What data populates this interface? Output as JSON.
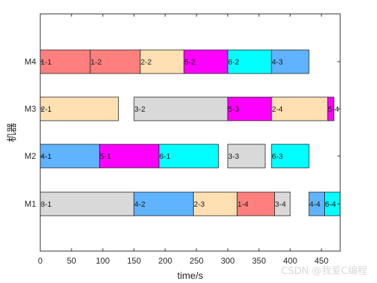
{
  "chart_data": {
    "type": "gantt",
    "xlabel": "time/s",
    "ylabel": "机器",
    "xlim": [
      0,
      480
    ],
    "xticks": [
      0,
      50,
      100,
      150,
      200,
      250,
      300,
      350,
      400,
      450
    ],
    "machines": [
      "M1",
      "M2",
      "M3",
      "M4"
    ],
    "job_colors": {
      "1": "#ff7f7f",
      "2": "#ffe0b3",
      "3": "#d9d9d9",
      "4": "#5fb3ff",
      "5": "#ff00ff",
      "6": "#00ffff"
    },
    "tasks": [
      {
        "machine": "M4",
        "label": "1-1",
        "job": "1",
        "start": 0,
        "end": 80
      },
      {
        "machine": "M4",
        "label": "1-2",
        "job": "1",
        "start": 80,
        "end": 160
      },
      {
        "machine": "M4",
        "label": "2-2",
        "job": "2",
        "start": 160,
        "end": 230
      },
      {
        "machine": "M4",
        "label": "5-2",
        "job": "5",
        "start": 230,
        "end": 300
      },
      {
        "machine": "M4",
        "label": "6-2",
        "job": "6",
        "start": 300,
        "end": 370
      },
      {
        "machine": "M4",
        "label": "4-3",
        "job": "4",
        "start": 370,
        "end": 430
      },
      {
        "machine": "M3",
        "label": "2-1",
        "job": "2",
        "start": 0,
        "end": 125
      },
      {
        "machine": "M3",
        "label": "3-2",
        "job": "3",
        "start": 150,
        "end": 300
      },
      {
        "machine": "M3",
        "label": "5-3",
        "job": "5",
        "start": 300,
        "end": 370
      },
      {
        "machine": "M3",
        "label": "2-4",
        "job": "2",
        "start": 370,
        "end": 460
      },
      {
        "machine": "M3",
        "label": "5-4",
        "job": "5",
        "start": 460,
        "end": 470
      },
      {
        "machine": "M2",
        "label": "4-1",
        "job": "4",
        "start": 0,
        "end": 95
      },
      {
        "machine": "M2",
        "label": "5-1",
        "job": "5",
        "start": 95,
        "end": 190
      },
      {
        "machine": "M2",
        "label": "6-1",
        "job": "6",
        "start": 190,
        "end": 285
      },
      {
        "machine": "M2",
        "label": "3-3",
        "job": "3",
        "start": 300,
        "end": 360
      },
      {
        "machine": "M2",
        "label": "6-3",
        "job": "6",
        "start": 370,
        "end": 430
      },
      {
        "machine": "M1",
        "label": "3-1",
        "job": "3",
        "start": 0,
        "end": 150
      },
      {
        "machine": "M1",
        "label": "4-2",
        "job": "4",
        "start": 150,
        "end": 245
      },
      {
        "machine": "M1",
        "label": "2-3",
        "job": "2",
        "start": 245,
        "end": 315
      },
      {
        "machine": "M1",
        "label": "1-4",
        "job": "1",
        "start": 315,
        "end": 375
      },
      {
        "machine": "M1",
        "label": "3-4",
        "job": "3",
        "start": 375,
        "end": 400
      },
      {
        "machine": "M1",
        "label": "4-4",
        "job": "4",
        "start": 430,
        "end": 455
      },
      {
        "machine": "M1",
        "label": "6-4",
        "job": "6",
        "start": 455,
        "end": 480
      }
    ]
  },
  "watermark": "CSDN @我爱C编程"
}
